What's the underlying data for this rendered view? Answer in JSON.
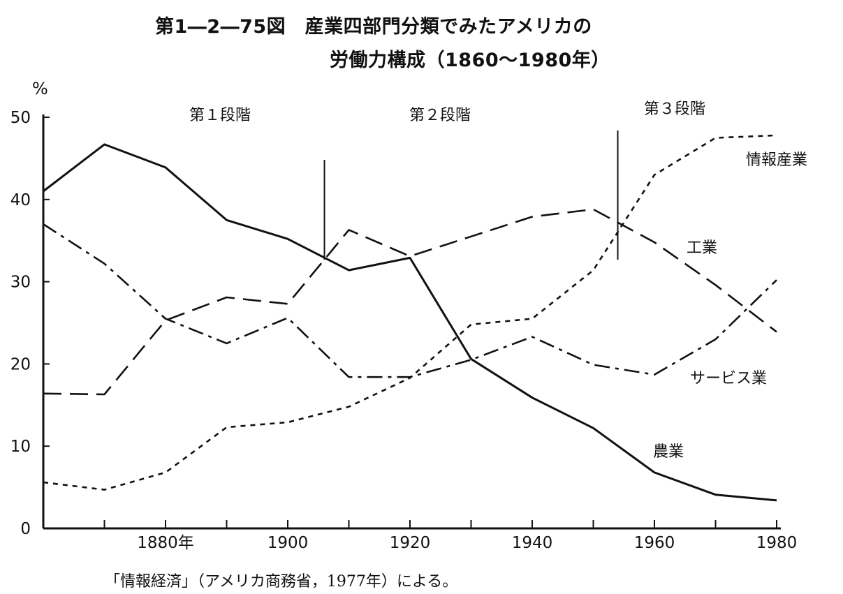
{
  "title_line1": "第1―2―75図　産業四部門分類でみたアメリカの",
  "title_line2": "労働力構成（1860～1980年）",
  "note": "「情報経済」（アメリカ商務省，1977年）による。",
  "chart_data": {
    "type": "line",
    "title": "第1―2―75図　産業四部門分類でみたアメリカの労働力構成（1860～1980年）",
    "ylabel": "%",
    "xlim": [
      1860,
      1980
    ],
    "ylim": [
      0,
      50
    ],
    "y_ticks": [
      0,
      10,
      20,
      30,
      40,
      50
    ],
    "x_ticks": [
      1870,
      1880,
      1890,
      1900,
      1910,
      1920,
      1930,
      1940,
      1950,
      1960,
      1970,
      1980
    ],
    "x_tick_labels": [
      {
        "x": 1880,
        "label": "1880年"
      },
      {
        "x": 1900,
        "label": "1900"
      },
      {
        "x": 1920,
        "label": "1920"
      },
      {
        "x": 1940,
        "label": "1940"
      },
      {
        "x": 1960,
        "label": "1960"
      },
      {
        "x": 1980,
        "label": "1980"
      }
    ],
    "grid": false,
    "series": [
      {
        "name": "農業",
        "style": "solid",
        "x": [
          1860,
          1870,
          1880,
          1890,
          1900,
          1910,
          1920,
          1930,
          1940,
          1950,
          1960,
          1970,
          1980
        ],
        "y": [
          41,
          46.7,
          43.9,
          37.5,
          35.2,
          31.4,
          32.9,
          20.6,
          15.9,
          12.2,
          6.8,
          4.1,
          3.4
        ]
      },
      {
        "name": "工業",
        "style": "dashdot",
        "x": [
          1860,
          1870,
          1880,
          1890,
          1900,
          1910,
          1920,
          1930,
          1940,
          1950,
          1960,
          1970,
          1980
        ],
        "y": [
          37,
          32.2,
          25.5,
          22.5,
          25.6,
          18.4,
          18.4,
          20.5,
          23.3,
          19.9,
          18.7,
          23,
          30.2
        ]
      },
      {
        "name": "サービス業",
        "style": "longdash",
        "x": [
          1860,
          1870,
          1880,
          1890,
          1900,
          1910,
          1920,
          1930,
          1940,
          1950,
          1960,
          1970,
          1980
        ],
        "y": [
          16.4,
          16.3,
          25.3,
          28.1,
          27.3,
          36.3,
          33.1,
          35.5,
          37.9,
          38.8,
          34.8,
          29.6,
          23.9
        ]
      },
      {
        "name": "情報産業",
        "style": "shortdash",
        "x": [
          1860,
          1870,
          1880,
          1890,
          1900,
          1910,
          1920,
          1930,
          1940,
          1950,
          1960,
          1970,
          1980
        ],
        "y": [
          5.6,
          4.7,
          6.8,
          12.3,
          12.9,
          14.8,
          18.3,
          24.8,
          25.5,
          31.4,
          43,
          47.5,
          47.8
        ]
      }
    ],
    "stages": [
      {
        "label": "第１段階"
      },
      {
        "label": "第２段階",
        "boundary_x": 1906
      },
      {
        "label": "第３段階",
        "boundary_x": 1954
      }
    ]
  }
}
